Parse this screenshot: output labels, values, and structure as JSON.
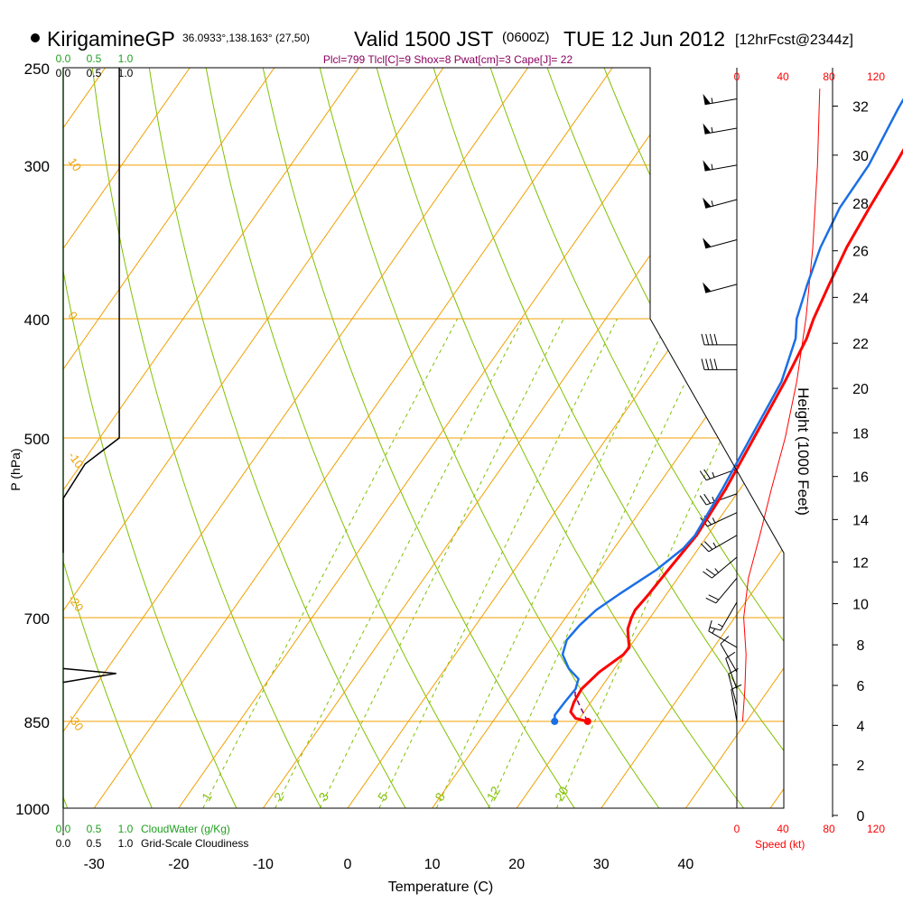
{
  "header": {
    "station": "KirigamineGP",
    "coords": "36.0933°,138.163° (27,50)",
    "valid": "Valid 1500 JST",
    "zulu": "(0600Z)",
    "date": "TUE 12 Jun 2012",
    "forecast": "[12hrFcst@2344z]"
  },
  "indices": "Plcl=799 Tlcl[C]=9 Shox=8 Pwat[cm]=3 Cape[J]= 22",
  "colors": {
    "temperature": "#ff0000",
    "dewpoint": "#1a6fe6",
    "parcel": "#8b0060",
    "isobar": "#f0a000",
    "adiabat": "#80c000",
    "cloudwater": "#20a020",
    "speed": "#ff0000"
  },
  "axes": {
    "xlabel": "Temperature (C)",
    "ylabel": "P (hPa)",
    "right_label": "Height (1000 Feet)",
    "speed_label": "Speed (kt)",
    "cloudwater_label": "CloudWater (g/Kg)",
    "cloudiness_label": "Grid-Scale Cloudiness"
  },
  "chart_data": {
    "type": "line",
    "title": "",
    "xlabel": "Temperature (C)",
    "ylabel": "P (hPa)",
    "x_ticks": [
      -30,
      -20,
      -10,
      0,
      10,
      20,
      30,
      40
    ],
    "xlim": [
      -33.5,
      36
    ],
    "pressure_levels": [
      250,
      300,
      400,
      500,
      700,
      850,
      1000
    ],
    "ylim": [
      1000,
      250
    ],
    "y_scale": "log",
    "height_ticks_kft": [
      0,
      2,
      4,
      6,
      8,
      10,
      12,
      14,
      16,
      18,
      20,
      22,
      24,
      26,
      28,
      30,
      32
    ],
    "cloud_ticks": [
      "0.0",
      "0.5",
      "1.0"
    ],
    "speed_ticks": [
      "0",
      "40",
      "80",
      "120"
    ],
    "isotherm_labels": [
      "10",
      "0",
      "-10",
      "-20",
      "-30"
    ],
    "theta_labels": [
      "0",
      "10",
      "20",
      "30"
    ],
    "mixing_ratio_labels": [
      "1",
      "2",
      "3",
      "5",
      "8",
      "12",
      "20"
    ],
    "series": [
      {
        "name": "Temperature",
        "points": [
          [
            21.2,
            850
          ],
          [
            19.5,
            845
          ],
          [
            18.4,
            835
          ],
          [
            18.0,
            820
          ],
          [
            17.8,
            800
          ],
          [
            18.5,
            775
          ],
          [
            19.9,
            750
          ],
          [
            20.0,
            740
          ],
          [
            19.3,
            730
          ],
          [
            18.3,
            715
          ],
          [
            17.8,
            700
          ],
          [
            17.6,
            690
          ],
          [
            17.9,
            670
          ],
          [
            18.2,
            640
          ],
          [
            18.7,
            600
          ],
          [
            18.3,
            550
          ],
          [
            17.4,
            500
          ],
          [
            16.4,
            450
          ],
          [
            15.4,
            415
          ],
          [
            14.6,
            400
          ],
          [
            13.6,
            375
          ],
          [
            12.6,
            350
          ],
          [
            12.0,
            325
          ],
          [
            11.5,
            300
          ],
          [
            10.6,
            270
          ],
          [
            10.1,
            260
          ]
        ]
      },
      {
        "name": "Dewpoint",
        "points": [
          [
            17.3,
            850
          ],
          [
            16.8,
            840
          ],
          [
            16.9,
            820
          ],
          [
            17.1,
            800
          ],
          [
            16.6,
            785
          ],
          [
            14.6,
            770
          ],
          [
            12.7,
            750
          ],
          [
            12.0,
            730
          ],
          [
            12.3,
            710
          ],
          [
            13.0,
            690
          ],
          [
            14.4,
            670
          ],
          [
            16.8,
            640
          ],
          [
            18.2,
            615
          ],
          [
            18.5,
            600
          ],
          [
            17.9,
            550
          ],
          [
            17.0,
            500
          ],
          [
            16.0,
            450
          ],
          [
            14.1,
            415
          ],
          [
            12.6,
            400
          ],
          [
            11.0,
            375
          ],
          [
            9.5,
            350
          ],
          [
            8.5,
            325
          ],
          [
            8.4,
            300
          ],
          [
            7.2,
            270
          ],
          [
            6.9,
            260
          ]
        ]
      },
      {
        "name": "Parcel",
        "points": [
          [
            21.2,
            850
          ],
          [
            19.2,
            828
          ],
          [
            17.6,
            810
          ],
          [
            17.0,
            799
          ]
        ]
      }
    ],
    "surface_markers": [
      {
        "name": "Temperature",
        "t": 21.2,
        "p": 850
      },
      {
        "name": "Dewpoint",
        "t": 17.3,
        "p": 850
      }
    ],
    "cloudiness_profile": [
      [
        0,
        620
      ],
      [
        0,
        560
      ],
      [
        0.35,
        525
      ],
      [
        0.9,
        500
      ],
      [
        0.9,
        460
      ],
      [
        0.9,
        250
      ]
    ],
    "cloud_spike": [
      [
        0,
        770
      ],
      [
        0.85,
        777
      ],
      [
        0,
        790
      ]
    ],
    "wind_speed_profile_kt": [
      [
        5,
        850
      ],
      [
        7,
        800
      ],
      [
        8,
        750
      ],
      [
        6,
        700
      ],
      [
        10,
        650
      ],
      [
        20,
        600
      ],
      [
        30,
        550
      ],
      [
        42,
        500
      ],
      [
        52,
        450
      ],
      [
        60,
        400
      ],
      [
        66,
        350
      ],
      [
        70,
        300
      ],
      [
        72,
        260
      ]
    ],
    "wind_barbs": [
      {
        "p": 265,
        "dir": 260,
        "kt": 55
      },
      {
        "p": 280,
        "dir": 260,
        "kt": 55
      },
      {
        "p": 300,
        "dir": 260,
        "kt": 55
      },
      {
        "p": 320,
        "dir": 255,
        "kt": 55
      },
      {
        "p": 345,
        "dir": 255,
        "kt": 50
      },
      {
        "p": 375,
        "dir": 255,
        "kt": 50
      },
      {
        "p": 420,
        "dir": 270,
        "kt": 40
      },
      {
        "p": 440,
        "dir": 270,
        "kt": 40
      },
      {
        "p": 530,
        "dir": 250,
        "kt": 25
      },
      {
        "p": 555,
        "dir": 250,
        "kt": 25
      },
      {
        "p": 575,
        "dir": 245,
        "kt": 25
      },
      {
        "p": 600,
        "dir": 240,
        "kt": 25
      },
      {
        "p": 625,
        "dir": 230,
        "kt": 25
      },
      {
        "p": 650,
        "dir": 220,
        "kt": 20
      },
      {
        "p": 680,
        "dir": 210,
        "kt": 15
      },
      {
        "p": 740,
        "dir": 300,
        "kt": 15
      },
      {
        "p": 775,
        "dir": 330,
        "kt": 10
      },
      {
        "p": 800,
        "dir": 340,
        "kt": 10
      },
      {
        "p": 825,
        "dir": 345,
        "kt": 10
      },
      {
        "p": 850,
        "dir": 350,
        "kt": 10
      }
    ]
  }
}
